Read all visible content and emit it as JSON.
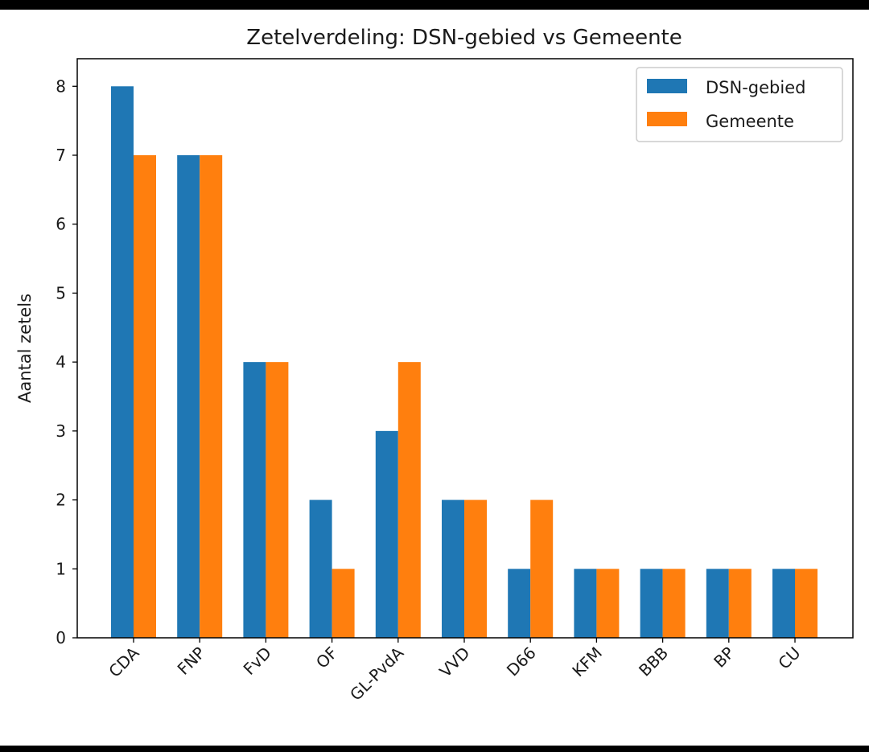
{
  "chart_data": {
    "type": "bar",
    "title": "Zetelverdeling: DSN-gebied vs Gemeente",
    "xlabel": "",
    "ylabel": "Aantal zetels",
    "categories": [
      "CDA",
      "FNP",
      "FvD",
      "OF",
      "GL-PvdA",
      "VVD",
      "D66",
      "KFM",
      "BBB",
      "BP",
      "CU"
    ],
    "series": [
      {
        "name": "DSN-gebied",
        "color": "#1f77b4",
        "values": [
          8,
          7,
          4,
          2,
          3,
          2,
          1,
          1,
          1,
          1,
          1
        ]
      },
      {
        "name": "Gemeente",
        "color": "#ff7f0e",
        "values": [
          7,
          7,
          4,
          1,
          4,
          2,
          2,
          1,
          1,
          1,
          1
        ]
      }
    ],
    "yticks": [
      0,
      1,
      2,
      3,
      4,
      5,
      6,
      7,
      8
    ],
    "ylim": [
      0,
      8.4
    ],
    "legend": "top-right",
    "grid": false
  }
}
